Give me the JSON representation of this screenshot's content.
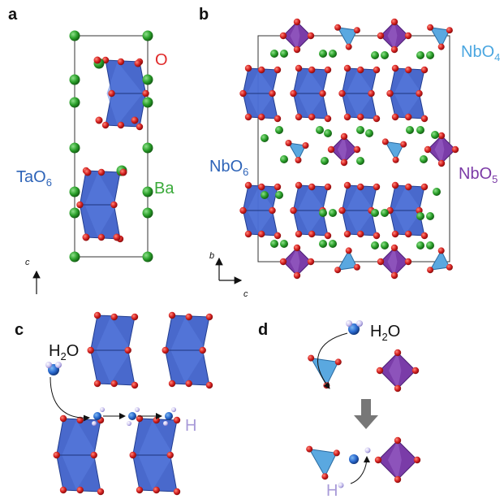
{
  "panels": {
    "a": {
      "label": "a",
      "axis": "c",
      "labels": {
        "o": "O",
        "ta": "TaO",
        "ta_sub": "6",
        "ba": "Ba"
      }
    },
    "b": {
      "label": "b",
      "axis_b": "b",
      "axis_c": "c",
      "labels": {
        "nbo4": "NbO",
        "nbo4_sub": "4",
        "nbo6": "NbO",
        "nbo6_sub": "6",
        "nbo5": "NbO",
        "nbo5_sub": "5"
      }
    },
    "c": {
      "label": "c",
      "labels": {
        "h2o_pre": "H",
        "h2o_sub": "2",
        "h2o_post": "O",
        "h": "H"
      }
    },
    "d": {
      "label": "d",
      "labels": {
        "h2o_pre": "H",
        "h2o_sub": "2",
        "h2o_post": "O",
        "h": "H"
      }
    }
  },
  "colors": {
    "oxygen": "#d42020",
    "barium": "#2aa02a",
    "octahedron": "#3a5cc8",
    "nbo4": "#5aa8e0",
    "nbo5": "#7a3ca8",
    "hydrogen": "#9a8ad8",
    "o_label": "#e02a2a",
    "ba_label": "#3aaa3a",
    "ta_label": "#2e64b8",
    "nbo4_label": "#4aa6e0",
    "nbo5_label": "#7b3aa6",
    "h_label": "#a89ad8",
    "arrow_grey": "#777777"
  }
}
